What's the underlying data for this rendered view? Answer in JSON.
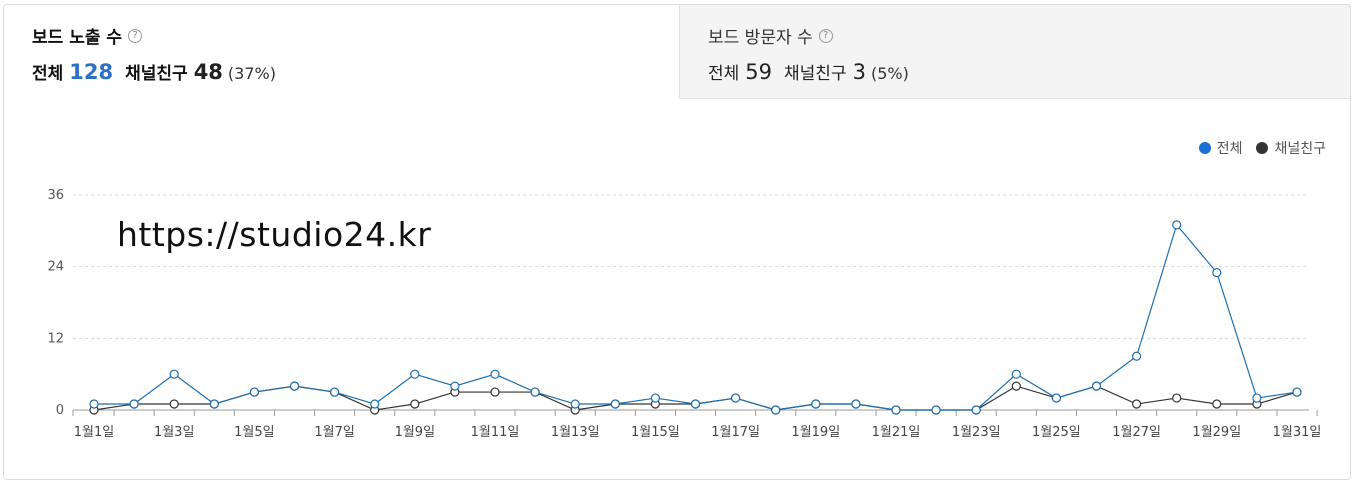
{
  "tabs": [
    {
      "title": "보드 노출 수",
      "total_label": "전체",
      "total_value": "128",
      "friend_label": "채널친구",
      "friend_value": "48",
      "friend_pct": "(37%)",
      "active": true
    },
    {
      "title": "보드 방문자 수",
      "total_label": "전체",
      "total_value": "59",
      "friend_label": "채널친구",
      "friend_value": "3",
      "friend_pct": "(5%)",
      "active": false
    }
  ],
  "help_icon_glyph": "?",
  "watermark": "https://studio24.kr",
  "colors": {
    "total": "#1a6fd6",
    "friend": "#333333",
    "total_line": "#1f6fad",
    "accent_number": "#2f6fc4"
  },
  "chart_data": {
    "type": "line",
    "categories": [
      "1월1일",
      "1월2일",
      "1월3일",
      "1월4일",
      "1월5일",
      "1월6일",
      "1월7일",
      "1월8일",
      "1월9일",
      "1월10일",
      "1월11일",
      "1월12일",
      "1월13일",
      "1월14일",
      "1월15일",
      "1월16일",
      "1월17일",
      "1월18일",
      "1월19일",
      "1월20일",
      "1월21일",
      "1월22일",
      "1월23일",
      "1월24일",
      "1월25일",
      "1월26일",
      "1월27일",
      "1월28일",
      "1월29일",
      "1월30일",
      "1월31일"
    ],
    "tick_labels": [
      "1월1일",
      "1월3일",
      "1월5일",
      "1월7일",
      "1월9일",
      "1월11일",
      "1월13일",
      "1월15일",
      "1월17일",
      "1월19일",
      "1월21일",
      "1월23일",
      "1월25일",
      "1월27일",
      "1월29일",
      "1월31일"
    ],
    "series": [
      {
        "name": "전체",
        "values": [
          1,
          1,
          6,
          1,
          3,
          4,
          3,
          1,
          6,
          4,
          6,
          3,
          1,
          1,
          2,
          1,
          2,
          0,
          1,
          1,
          0,
          0,
          0,
          6,
          2,
          4,
          9,
          31,
          23,
          2,
          3
        ]
      },
      {
        "name": "채널친구",
        "values": [
          0,
          1,
          1,
          1,
          3,
          4,
          3,
          0,
          1,
          3,
          3,
          3,
          0,
          1,
          1,
          1,
          2,
          0,
          1,
          1,
          0,
          0,
          0,
          4,
          2,
          4,
          1,
          2,
          1,
          1,
          3
        ]
      }
    ],
    "yticks": [
      0,
      12,
      24,
      36
    ],
    "ylim": [
      0,
      36
    ],
    "grid": true,
    "legend_position": "top-right"
  }
}
